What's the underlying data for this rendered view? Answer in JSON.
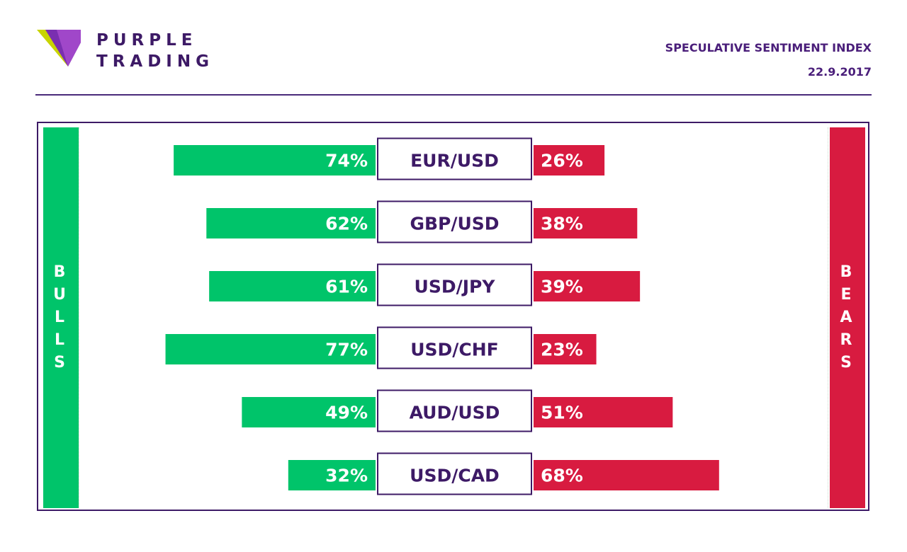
{
  "brand": {
    "line1": "PURPLE",
    "line2": "TRADING"
  },
  "header": {
    "title": "SPECULATIVE SENTIMENT INDEX",
    "date": "22.9.2017"
  },
  "labels": {
    "bulls": "BULLS",
    "bears": "BEARS"
  },
  "colors": {
    "bull": "#00c46a",
    "bear": "#d81b40",
    "accent": "#3d1a66"
  },
  "chart_data": {
    "type": "bar",
    "title": "SPECULATIVE SENTIMENT INDEX",
    "categories": [
      "EUR/USD",
      "GBP/USD",
      "USD/JPY",
      "USD/CHF",
      "AUD/USD",
      "USD/CAD"
    ],
    "series": [
      {
        "name": "BULLS",
        "values": [
          74,
          62,
          61,
          77,
          49,
          32
        ],
        "labels": [
          "74%",
          "62%",
          "61%",
          "77%",
          "49%",
          "32%"
        ]
      },
      {
        "name": "BEARS",
        "values": [
          26,
          38,
          39,
          23,
          51,
          68
        ],
        "labels": [
          "26%",
          "38%",
          "39%",
          "23%",
          "51%",
          "68%"
        ]
      }
    ],
    "unit": "%"
  }
}
